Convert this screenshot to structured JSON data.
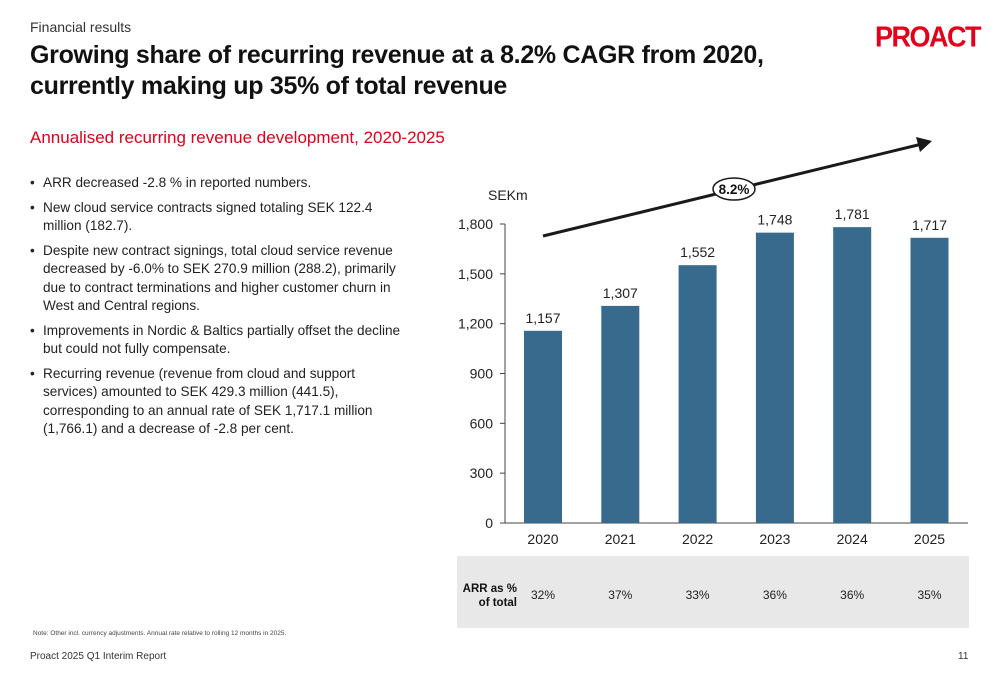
{
  "header": {
    "kicker": "Financial results",
    "title": "Growing share of recurring revenue at a 8.2% CAGR from 2020, currently making up 35% of total revenue",
    "logo": "PROACT"
  },
  "subtitle": "Annualised recurring revenue development, 2020-2025",
  "bullets": [
    "ARR decreased -2.8 % in reported numbers.",
    "New cloud service contracts signed totaling SEK 122.4 million (182.7).",
    "Despite new contract signings, total cloud service revenue decreased by -6.0% to SEK 270.9 million (288.2), primarily due to contract terminations and higher customer churn in West and Central regions.",
    "Improvements in Nordic & Baltics partially offset the decline but could not fully compensate.",
    "Recurring revenue (revenue from cloud and support services) amounted to SEK 429.3 million (441.5), corresponding to an annual rate of SEK 1,717.1 million (1,766.1) and a decrease of -2.8 per cent."
  ],
  "chart_data": {
    "type": "bar",
    "categories": [
      "2020",
      "2021",
      "2022",
      "2023",
      "2024",
      "2025"
    ],
    "values": [
      1157,
      1307,
      1552,
      1748,
      1781,
      1717
    ],
    "value_labels": [
      "1,157",
      "1,307",
      "1,552",
      "1,748",
      "1,781",
      "1,717"
    ],
    "ylabel": "SEKm",
    "ylim": [
      0,
      1800
    ],
    "yticks": [
      0,
      300,
      600,
      900,
      1200,
      1500,
      1800
    ],
    "ytick_labels": [
      "0",
      "300",
      "600",
      "900",
      "1,200",
      "1,500",
      "1,800"
    ],
    "grid": false,
    "bar_color": "#376a8c",
    "cagr_label": "8.2%",
    "table": {
      "row_label": "ARR as % of total",
      "values": [
        "32%",
        "37%",
        "33%",
        "36%",
        "36%",
        "35%"
      ]
    }
  },
  "note": "Note: Other incl. currency adjustments. Annual rate relative to rolling 12 months in 2025.",
  "footer": {
    "left": "Proact 2025 Q1 Interim Report",
    "page": "11"
  },
  "colors": {
    "accent": "#e2001a",
    "bar": "#376a8c",
    "table_bg": "#e8e8e8"
  }
}
